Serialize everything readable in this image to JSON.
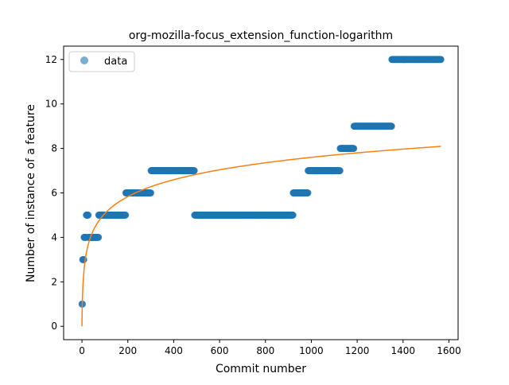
{
  "chart_data": {
    "type": "scatter",
    "title": "org-mozilla-focus_extension_function-logarithm",
    "xlabel": "Commit number",
    "ylabel": "Number of instance of a feature",
    "xlim": [
      -80,
      1640
    ],
    "ylim": [
      -0.6,
      12.6
    ],
    "xticks": [
      0,
      200,
      400,
      600,
      800,
      1000,
      1200,
      1400,
      1600
    ],
    "yticks": [
      0,
      2,
      4,
      6,
      8,
      10,
      12
    ],
    "grid": false,
    "legend": {
      "position": "upper-left",
      "entries": [
        "data"
      ]
    },
    "colors": {
      "data": "#1f77b4",
      "fit": "#ff7f0e"
    },
    "series": [
      {
        "name": "data",
        "kind": "scatter",
        "segments": [
          {
            "x_start": 0,
            "x_end": 2,
            "y": 1
          },
          {
            "x_start": 3,
            "x_end": 8,
            "y": 3
          },
          {
            "x_start": 9,
            "x_end": 18,
            "y": 4
          },
          {
            "x_start": 19,
            "x_end": 27,
            "y": 5
          },
          {
            "x_start": 28,
            "x_end": 72,
            "y": 4
          },
          {
            "x_start": 73,
            "x_end": 190,
            "y": 5
          },
          {
            "x_start": 191,
            "x_end": 300,
            "y": 6
          },
          {
            "x_start": 301,
            "x_end": 490,
            "y": 7
          },
          {
            "x_start": 491,
            "x_end": 920,
            "y": 5
          },
          {
            "x_start": 921,
            "x_end": 985,
            "y": 6
          },
          {
            "x_start": 986,
            "x_end": 1125,
            "y": 7
          },
          {
            "x_start": 1126,
            "x_end": 1185,
            "y": 8
          },
          {
            "x_start": 1186,
            "x_end": 1350,
            "y": 9
          },
          {
            "x_start": 1351,
            "x_end": 1565,
            "y": 12
          }
        ]
      },
      {
        "kind": "line",
        "model": "logarithmic",
        "equation": "y = 1.1 * ln(x + 1)",
        "coefficients": {
          "a": 1.1,
          "b": 0
        },
        "x_range": [
          0,
          1565
        ]
      }
    ]
  }
}
